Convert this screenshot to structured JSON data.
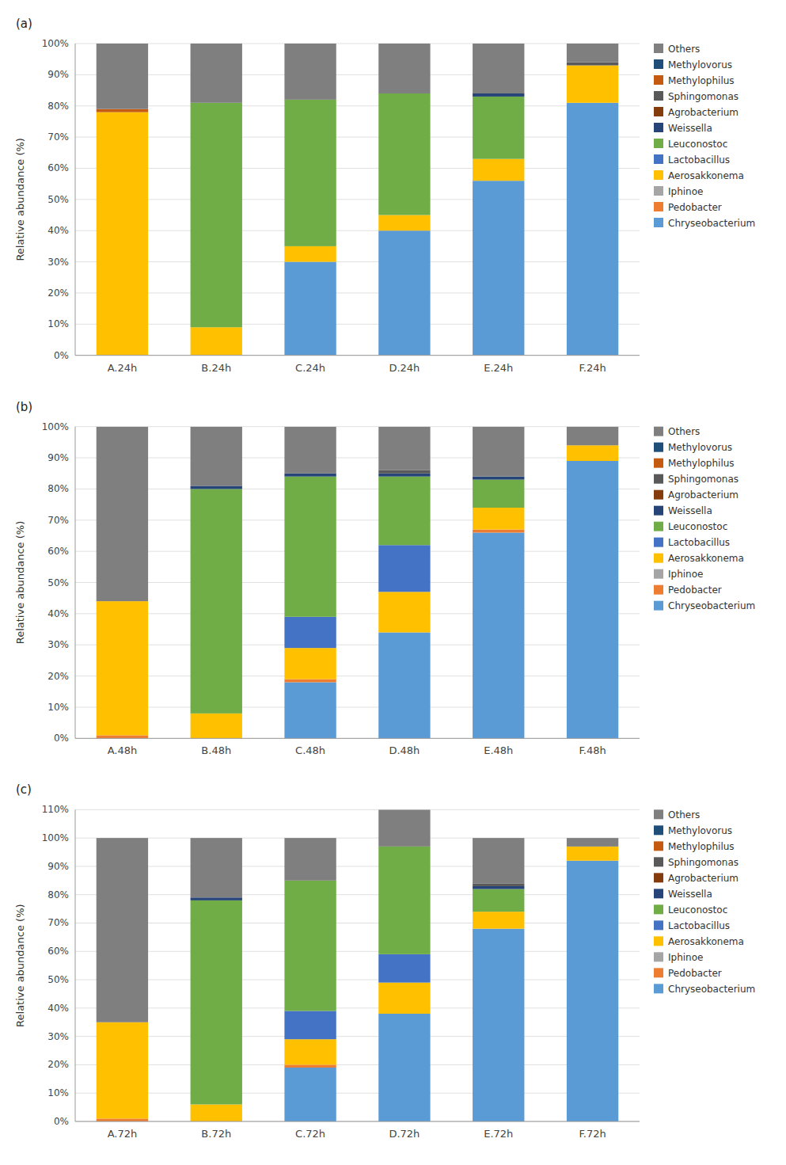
{
  "chart_data": [
    {
      "type": "bar",
      "stacked": true,
      "title": "(a)",
      "ylabel": "Relative abundance (%)",
      "grid": true,
      "legend": "right",
      "categories": [
        "A.24h",
        "B.24h",
        "C.24h",
        "D.24h",
        "E.24h",
        "F.24h"
      ],
      "ylim": [
        0,
        100
      ],
      "yticks": [
        {
          "value": 0,
          "label": "0%"
        },
        {
          "value": 10,
          "label": "10%"
        },
        {
          "value": 20,
          "label": "20%"
        },
        {
          "value": 30,
          "label": "30%"
        },
        {
          "value": 40,
          "label": "40%"
        },
        {
          "value": 50,
          "label": "50%"
        },
        {
          "value": 60,
          "label": "60%"
        },
        {
          "value": 70,
          "label": "70%"
        },
        {
          "value": 80,
          "label": "80%"
        },
        {
          "value": 90,
          "label": "90%"
        },
        {
          "value": 100,
          "label": "100%"
        }
      ],
      "series": [
        {
          "name": "Chryseobacterium",
          "color": "#5B9BD5",
          "values": [
            0,
            0,
            30,
            40,
            56,
            81
          ]
        },
        {
          "name": "Pedobacter",
          "color": "#ED7D31",
          "values": [
            0,
            0,
            0,
            0,
            0,
            0
          ]
        },
        {
          "name": "Iphinoe",
          "color": "#A5A5A5",
          "values": [
            0,
            0,
            0,
            0,
            0,
            0
          ]
        },
        {
          "name": "Aerosakkonema",
          "color": "#FFC000",
          "values": [
            78,
            9,
            5,
            5,
            7,
            12
          ]
        },
        {
          "name": "Lactobacillus",
          "color": "#4472C4",
          "values": [
            0,
            0,
            0,
            0,
            0,
            0
          ]
        },
        {
          "name": "Leuconostoc",
          "color": "#70AD47",
          "values": [
            0,
            72,
            47,
            39,
            20,
            0
          ]
        },
        {
          "name": "Weissella",
          "color": "#264478",
          "values": [
            0,
            0,
            0,
            0,
            1,
            0
          ]
        },
        {
          "name": "Agrobacterium",
          "color": "#843C0C",
          "values": [
            0,
            0,
            0,
            0,
            0,
            0
          ]
        },
        {
          "name": "Sphingomonas",
          "color": "#595959",
          "values": [
            0,
            0,
            0,
            0,
            0,
            1
          ]
        },
        {
          "name": "Methylophilus",
          "color": "#C55A11",
          "values": [
            1,
            0,
            0,
            0,
            0,
            0
          ]
        },
        {
          "name": "Methylovorus",
          "color": "#1F4E79",
          "values": [
            0,
            0,
            0,
            0,
            0,
            0
          ]
        },
        {
          "name": "Others",
          "color": "#7F7F7F",
          "values": [
            21,
            19,
            18,
            16,
            16,
            6
          ]
        }
      ]
    },
    {
      "type": "bar",
      "stacked": true,
      "title": "(b)",
      "ylabel": "Relative abundance (%)",
      "grid": true,
      "legend": "right",
      "categories": [
        "A.48h",
        "B.48h",
        "C.48h",
        "D.48h",
        "E.48h",
        "F.48h"
      ],
      "ylim": [
        0,
        100
      ],
      "yticks": [
        {
          "value": 0,
          "label": "0%"
        },
        {
          "value": 10,
          "label": "10%"
        },
        {
          "value": 20,
          "label": "20%"
        },
        {
          "value": 30,
          "label": "30%"
        },
        {
          "value": 40,
          "label": "40%"
        },
        {
          "value": 50,
          "label": "50%"
        },
        {
          "value": 60,
          "label": "60%"
        },
        {
          "value": 70,
          "label": "70%"
        },
        {
          "value": 80,
          "label": "80%"
        },
        {
          "value": 90,
          "label": "90%"
        },
        {
          "value": 100,
          "label": "100%"
        }
      ],
      "series": [
        {
          "name": "Chryseobacterium",
          "color": "#5B9BD5",
          "values": [
            0,
            0,
            18,
            34,
            66,
            89
          ]
        },
        {
          "name": "Pedobacter",
          "color": "#ED7D31",
          "values": [
            1,
            0,
            1,
            0,
            1,
            0
          ]
        },
        {
          "name": "Iphinoe",
          "color": "#A5A5A5",
          "values": [
            0,
            0,
            0,
            0,
            0,
            0
          ]
        },
        {
          "name": "Aerosakkonema",
          "color": "#FFC000",
          "values": [
            43,
            8,
            10,
            13,
            7,
            5
          ]
        },
        {
          "name": "Lactobacillus",
          "color": "#4472C4",
          "values": [
            0,
            0,
            10,
            15,
            0,
            0
          ]
        },
        {
          "name": "Leuconostoc",
          "color": "#70AD47",
          "values": [
            0,
            72,
            45,
            22,
            9,
            0
          ]
        },
        {
          "name": "Weissella",
          "color": "#264478",
          "values": [
            0,
            1,
            1,
            1,
            1,
            0
          ]
        },
        {
          "name": "Agrobacterium",
          "color": "#843C0C",
          "values": [
            0,
            0,
            0,
            0,
            0,
            0
          ]
        },
        {
          "name": "Sphingomonas",
          "color": "#595959",
          "values": [
            0,
            0,
            0,
            1,
            0,
            0
          ]
        },
        {
          "name": "Methylophilus",
          "color": "#C55A11",
          "values": [
            0,
            0,
            0,
            0,
            0,
            0
          ]
        },
        {
          "name": "Methylovorus",
          "color": "#1F4E79",
          "values": [
            0,
            0,
            0,
            0,
            0,
            0
          ]
        },
        {
          "name": "Others",
          "color": "#7F7F7F",
          "values": [
            56,
            19,
            15,
            14,
            16,
            6
          ]
        }
      ]
    },
    {
      "type": "bar",
      "stacked": true,
      "title": "(c)",
      "ylabel": "Relative abundance (%)",
      "grid": true,
      "legend": "right",
      "categories": [
        "A.72h",
        "B.72h",
        "C.72h",
        "D.72h",
        "E.72h",
        "F.72h"
      ],
      "ylim": [
        0,
        110
      ],
      "yticks": [
        {
          "value": 0,
          "label": "0%"
        },
        {
          "value": 10,
          "label": "10%"
        },
        {
          "value": 20,
          "label": "20%"
        },
        {
          "value": 30,
          "label": "30%"
        },
        {
          "value": 40,
          "label": "40%"
        },
        {
          "value": 50,
          "label": "50%"
        },
        {
          "value": 60,
          "label": "60%"
        },
        {
          "value": 70,
          "label": "70%"
        },
        {
          "value": 80,
          "label": "80%"
        },
        {
          "value": 90,
          "label": "90%"
        },
        {
          "value": 100,
          "label": "100%"
        },
        {
          "value": 110,
          "label": "110%"
        }
      ],
      "series": [
        {
          "name": "Chryseobacterium",
          "color": "#5B9BD5",
          "values": [
            0,
            0,
            19,
            38,
            68,
            92
          ]
        },
        {
          "name": "Pedobacter",
          "color": "#ED7D31",
          "values": [
            1,
            0,
            1,
            0,
            0,
            0
          ]
        },
        {
          "name": "Iphinoe",
          "color": "#A5A5A5",
          "values": [
            0,
            0,
            0,
            0,
            0,
            0
          ]
        },
        {
          "name": "Aerosakkonema",
          "color": "#FFC000",
          "values": [
            34,
            6,
            9,
            11,
            6,
            5
          ]
        },
        {
          "name": "Lactobacillus",
          "color": "#4472C4",
          "values": [
            0,
            0,
            10,
            10,
            0,
            0
          ]
        },
        {
          "name": "Leuconostoc",
          "color": "#70AD47",
          "values": [
            0,
            72,
            46,
            38,
            8,
            0
          ]
        },
        {
          "name": "Weissella",
          "color": "#264478",
          "values": [
            0,
            1,
            0,
            0,
            1,
            0
          ]
        },
        {
          "name": "Agrobacterium",
          "color": "#843C0C",
          "values": [
            0,
            0,
            0,
            0,
            0,
            0
          ]
        },
        {
          "name": "Sphingomonas",
          "color": "#595959",
          "values": [
            0,
            0,
            0,
            0,
            1,
            0
          ]
        },
        {
          "name": "Methylophilus",
          "color": "#C55A11",
          "values": [
            0,
            0,
            0,
            0,
            0,
            0
          ]
        },
        {
          "name": "Methylovorus",
          "color": "#1F4E79",
          "values": [
            0,
            0,
            0,
            0,
            0,
            0
          ]
        },
        {
          "name": "Others",
          "color": "#7F7F7F",
          "values": [
            65,
            21,
            15,
            13,
            16,
            3
          ]
        }
      ]
    }
  ]
}
